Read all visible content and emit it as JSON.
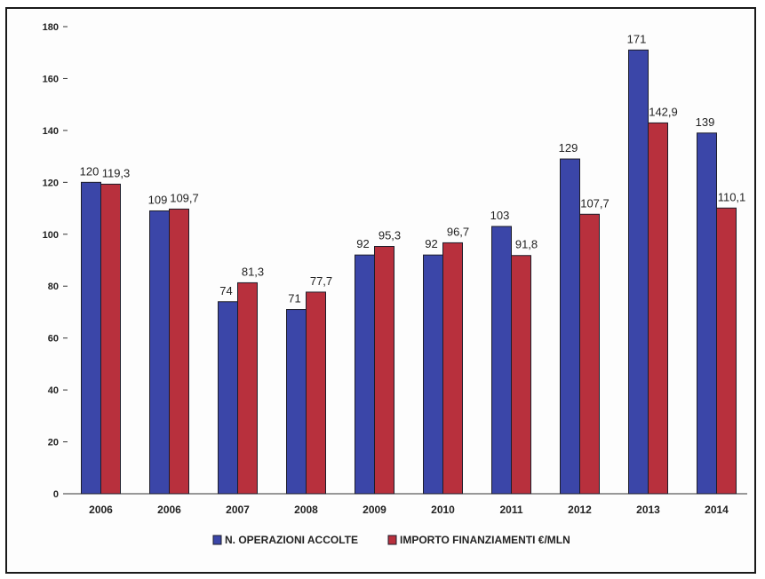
{
  "chart_data": {
    "type": "bar",
    "categories": [
      "2006",
      "2006",
      "2007",
      "2008",
      "2009",
      "2010",
      "2011",
      "2012",
      "2013",
      "2014"
    ],
    "series": [
      {
        "name": "N. OPERAZIONI ACCOLTE",
        "color": "#3b46a8",
        "values": [
          120,
          109,
          74,
          71,
          92,
          92,
          103,
          129,
          171,
          139
        ],
        "labels": [
          "120",
          "109",
          "74",
          "71",
          "92",
          "92",
          "103",
          "129",
          "171",
          "139"
        ]
      },
      {
        "name": "IMPORTO FINANZIAMENTI €/MLN",
        "color": "#b8303d",
        "values": [
          119.3,
          109.7,
          81.3,
          77.7,
          95.3,
          96.7,
          91.8,
          107.7,
          142.9,
          110.1
        ],
        "labels": [
          "119,3",
          "109,7",
          "81,3",
          "77,7",
          "95,3",
          "96,7",
          "91,8",
          "107,7",
          "142,9",
          "110,1"
        ]
      }
    ],
    "ylim": [
      0,
      180
    ],
    "yticks": [
      0,
      20,
      40,
      60,
      80,
      100,
      120,
      140,
      160,
      180
    ],
    "legend": "bottom",
    "grid": false
  }
}
